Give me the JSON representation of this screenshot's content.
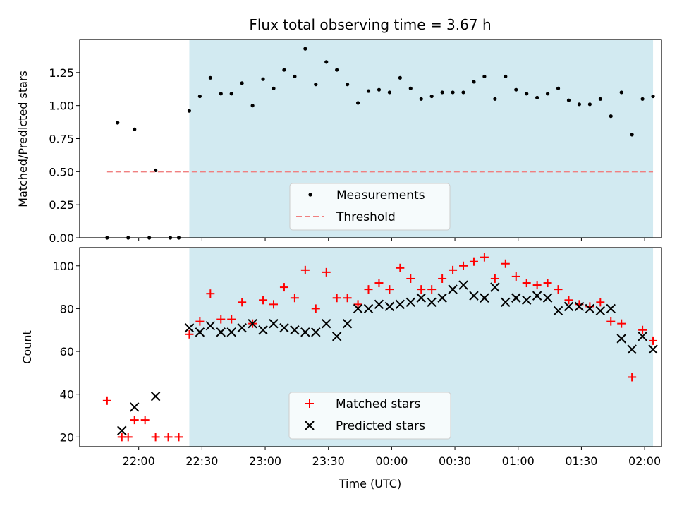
{
  "chart_data": [
    {
      "type": "scatter",
      "title": "Flux total observing time = 3.67 h",
      "xlabel": "",
      "ylabel": "Matched/Predicted stars",
      "xlim": [
        "21:32",
        "02:08"
      ],
      "ylim": [
        0,
        1.5
      ],
      "yticks": [
        "0.00",
        "0.25",
        "0.50",
        "0.75",
        "1.00",
        "1.25"
      ],
      "xticks": [
        "22:00",
        "22:30",
        "23:00",
        "23:30",
        "00:00",
        "00:30",
        "01:00",
        "01:30",
        "02:00"
      ],
      "shaded_region": {
        "start": "22:24",
        "end": "02:04",
        "color": "#add8e6"
      },
      "legend_position": "lower center",
      "series": [
        {
          "name": "Measurements",
          "style": "point",
          "color": "#000000",
          "points": [
            [
              "21:45",
              0.0
            ],
            [
              "21:50",
              0.87
            ],
            [
              "21:55",
              0.0
            ],
            [
              "21:58",
              0.82
            ],
            [
              "22:05",
              0.0
            ],
            [
              "22:08",
              0.51
            ],
            [
              "22:15",
              0.0
            ],
            [
              "22:19",
              0.0
            ],
            [
              "22:24",
              0.96
            ],
            [
              "22:29",
              1.07
            ],
            [
              "22:34",
              1.21
            ],
            [
              "22:39",
              1.09
            ],
            [
              "22:44",
              1.09
            ],
            [
              "22:49",
              1.17
            ],
            [
              "22:54",
              1.0
            ],
            [
              "22:59",
              1.2
            ],
            [
              "23:04",
              1.13
            ],
            [
              "23:09",
              1.27
            ],
            [
              "23:14",
              1.22
            ],
            [
              "23:19",
              1.43
            ],
            [
              "23:24",
              1.16
            ],
            [
              "23:29",
              1.33
            ],
            [
              "23:34",
              1.27
            ],
            [
              "23:39",
              1.16
            ],
            [
              "23:44",
              1.02
            ],
            [
              "23:49",
              1.11
            ],
            [
              "23:54",
              1.12
            ],
            [
              "23:59",
              1.1
            ],
            [
              "00:04",
              1.21
            ],
            [
              "00:09",
              1.13
            ],
            [
              "00:14",
              1.05
            ],
            [
              "00:19",
              1.07
            ],
            [
              "00:24",
              1.1
            ],
            [
              "00:29",
              1.1
            ],
            [
              "00:34",
              1.1
            ],
            [
              "00:39",
              1.18
            ],
            [
              "00:44",
              1.22
            ],
            [
              "00:49",
              1.05
            ],
            [
              "00:54",
              1.22
            ],
            [
              "00:59",
              1.12
            ],
            [
              "01:04",
              1.09
            ],
            [
              "01:09",
              1.06
            ],
            [
              "01:14",
              1.09
            ],
            [
              "01:19",
              1.13
            ],
            [
              "01:24",
              1.04
            ],
            [
              "01:29",
              1.01
            ],
            [
              "01:34",
              1.01
            ],
            [
              "01:39",
              1.05
            ],
            [
              "01:44",
              0.92
            ],
            [
              "01:49",
              1.1
            ],
            [
              "01:54",
              0.78
            ],
            [
              "01:59",
              1.05
            ],
            [
              "02:04",
              1.07
            ]
          ]
        },
        {
          "name": "Threshold",
          "style": "dashed-line",
          "color": "#f08080",
          "points": [
            [
              "21:45",
              0.5
            ],
            [
              "02:04",
              0.5
            ]
          ]
        }
      ]
    },
    {
      "type": "scatter",
      "title": "",
      "xlabel": "Time (UTC)",
      "ylabel": "Count",
      "xlim": [
        "21:32",
        "02:08"
      ],
      "ylim": [
        15.5,
        108.5
      ],
      "yticks": [
        "20",
        "40",
        "60",
        "80",
        "100"
      ],
      "xticks": [
        "22:00",
        "22:30",
        "23:00",
        "23:30",
        "00:00",
        "00:30",
        "01:00",
        "01:30",
        "02:00"
      ],
      "shaded_region": {
        "start": "22:24",
        "end": "02:04",
        "color": "#add8e6"
      },
      "legend_position": "lower center",
      "series": [
        {
          "name": "Matched stars",
          "style": "plus",
          "color": "#ff0000",
          "points": [
            [
              "21:45",
              37
            ],
            [
              "21:52",
              20
            ],
            [
              "21:55",
              20
            ],
            [
              "21:58",
              28
            ],
            [
              "22:03",
              28
            ],
            [
              "22:08",
              20
            ],
            [
              "22:14",
              20
            ],
            [
              "22:19",
              20
            ],
            [
              "22:24",
              68
            ],
            [
              "22:29",
              74
            ],
            [
              "22:34",
              87
            ],
            [
              "22:39",
              75
            ],
            [
              "22:44",
              75
            ],
            [
              "22:49",
              83
            ],
            [
              "22:54",
              73
            ],
            [
              "22:59",
              84
            ],
            [
              "23:04",
              82
            ],
            [
              "23:09",
              90
            ],
            [
              "23:14",
              85
            ],
            [
              "23:19",
              98
            ],
            [
              "23:24",
              80
            ],
            [
              "23:29",
              97
            ],
            [
              "23:34",
              85
            ],
            [
              "23:39",
              85
            ],
            [
              "23:44",
              82
            ],
            [
              "23:49",
              89
            ],
            [
              "23:54",
              92
            ],
            [
              "23:59",
              89
            ],
            [
              "00:04",
              99
            ],
            [
              "00:09",
              94
            ],
            [
              "00:14",
              89
            ],
            [
              "00:19",
              89
            ],
            [
              "00:24",
              94
            ],
            [
              "00:29",
              98
            ],
            [
              "00:34",
              100
            ],
            [
              "00:39",
              102
            ],
            [
              "00:44",
              104
            ],
            [
              "00:49",
              94
            ],
            [
              "00:54",
              101
            ],
            [
              "00:59",
              95
            ],
            [
              "01:04",
              92
            ],
            [
              "01:09",
              91
            ],
            [
              "01:14",
              92
            ],
            [
              "01:19",
              89
            ],
            [
              "01:24",
              84
            ],
            [
              "01:29",
              82
            ],
            [
              "01:34",
              81
            ],
            [
              "01:39",
              83
            ],
            [
              "01:44",
              74
            ],
            [
              "01:49",
              73
            ],
            [
              "01:54",
              48
            ],
            [
              "01:59",
              70
            ],
            [
              "02:04",
              65
            ]
          ]
        },
        {
          "name": "Predicted stars",
          "style": "x",
          "color": "#000000",
          "points": [
            [
              "21:52",
              23
            ],
            [
              "21:58",
              34
            ],
            [
              "22:08",
              39
            ],
            [
              "22:24",
              71
            ],
            [
              "22:29",
              69
            ],
            [
              "22:34",
              72
            ],
            [
              "22:39",
              69
            ],
            [
              "22:44",
              69
            ],
            [
              "22:49",
              71
            ],
            [
              "22:54",
              73
            ],
            [
              "22:59",
              70
            ],
            [
              "23:04",
              73
            ],
            [
              "23:09",
              71
            ],
            [
              "23:14",
              70
            ],
            [
              "23:19",
              69
            ],
            [
              "23:24",
              69
            ],
            [
              "23:29",
              73
            ],
            [
              "23:34",
              67
            ],
            [
              "23:39",
              73
            ],
            [
              "23:44",
              80
            ],
            [
              "23:49",
              80
            ],
            [
              "23:54",
              82
            ],
            [
              "23:59",
              81
            ],
            [
              "00:04",
              82
            ],
            [
              "00:09",
              83
            ],
            [
              "00:14",
              85
            ],
            [
              "00:19",
              83
            ],
            [
              "00:24",
              85
            ],
            [
              "00:29",
              89
            ],
            [
              "00:34",
              91
            ],
            [
              "00:39",
              86
            ],
            [
              "00:44",
              85
            ],
            [
              "00:49",
              90
            ],
            [
              "00:54",
              83
            ],
            [
              "00:59",
              85
            ],
            [
              "01:04",
              84
            ],
            [
              "01:09",
              86
            ],
            [
              "01:14",
              85
            ],
            [
              "01:19",
              79
            ],
            [
              "01:24",
              81
            ],
            [
              "01:29",
              81
            ],
            [
              "01:34",
              80
            ],
            [
              "01:39",
              79
            ],
            [
              "01:44",
              80
            ],
            [
              "01:49",
              66
            ],
            [
              "01:54",
              61
            ],
            [
              "01:59",
              67
            ],
            [
              "02:04",
              61
            ]
          ]
        }
      ]
    }
  ]
}
